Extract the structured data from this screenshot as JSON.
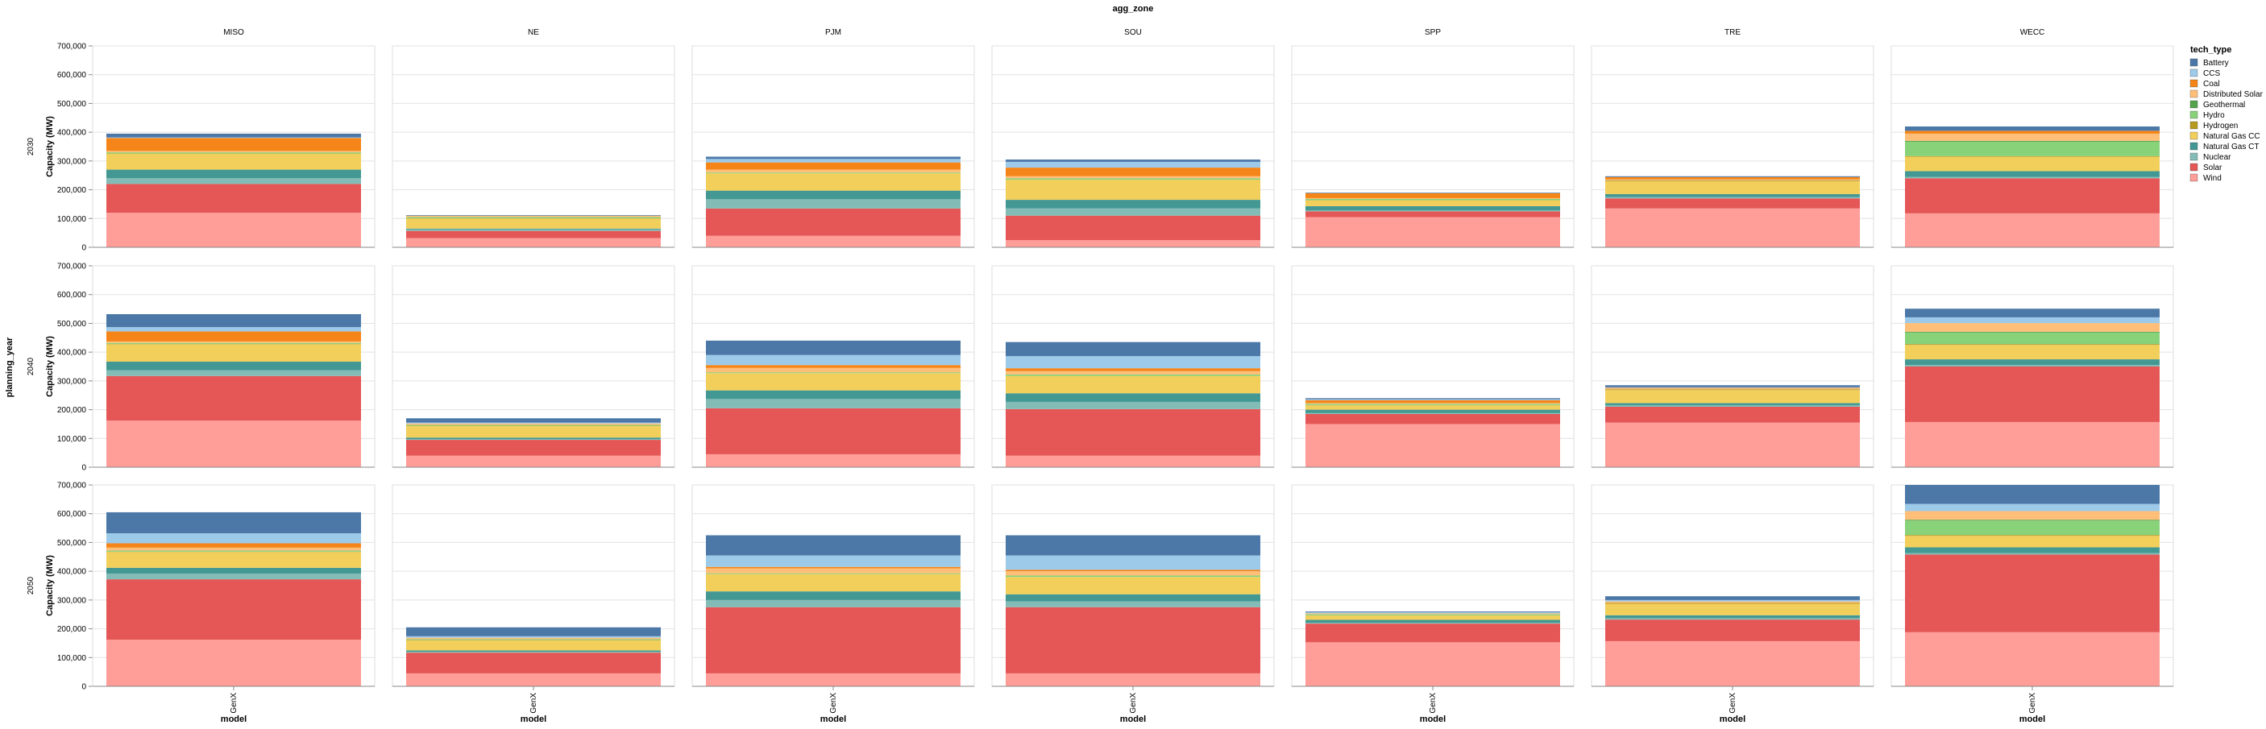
{
  "chart_data": {
    "type": "bar",
    "stacked": true,
    "title": "agg_zone",
    "row_field": "planning_year",
    "xlabel": "model",
    "ylabel": "Capacity (MW)",
    "ylim": [
      0,
      700000
    ],
    "yticks": [
      0,
      100000,
      200000,
      300000,
      400000,
      500000,
      600000,
      700000
    ],
    "ytick_labels": [
      "0",
      "100,000",
      "200,000",
      "300,000",
      "400,000",
      "500,000",
      "600,000",
      "700,000"
    ],
    "grid": true,
    "legend_title": "tech_type",
    "legend_position": "right",
    "columns": [
      "MISO",
      "NE",
      "PJM",
      "SOU",
      "SPP",
      "TRE",
      "WECC"
    ],
    "rows": [
      "2030",
      "2040",
      "2050"
    ],
    "categories": [
      "GenX"
    ],
    "tech_types": [
      "Battery",
      "CCS",
      "Coal",
      "Distributed Solar",
      "Geothermal",
      "Hydro",
      "Hydrogen",
      "Natural Gas CC",
      "Natural Gas CT",
      "Nuclear",
      "Solar",
      "Wind"
    ],
    "colors": {
      "Battery": "#4c78a8",
      "CCS": "#9ecae9",
      "Coal": "#f58518",
      "Distributed Solar": "#ffbf79",
      "Geothermal": "#54a24b",
      "Hydro": "#88d27a",
      "Hydrogen": "#b79a20",
      "Natural Gas CC": "#f2cf5b",
      "Natural Gas CT": "#439894",
      "Nuclear": "#83bcb6",
      "Solar": "#e45756",
      "Wind": "#ff9d98"
    },
    "stack_order": [
      "Wind",
      "Solar",
      "Nuclear",
      "Natural Gas CT",
      "Natural Gas CC",
      "Hydrogen",
      "Hydro",
      "Geothermal",
      "Distributed Solar",
      "Coal",
      "CCS",
      "Battery"
    ],
    "values": {
      "2030": {
        "MISO": {
          "Wind": 120000,
          "Solar": 100000,
          "Nuclear": 20000,
          "Natural Gas CT": 30000,
          "Natural Gas CC": 55000,
          "Hydrogen": 1000,
          "Hydro": 4000,
          "Geothermal": 0,
          "Distributed Solar": 5000,
          "Coal": 45000,
          "CCS": 2000,
          "Battery": 13000
        },
        "NE": {
          "Wind": 32000,
          "Solar": 25000,
          "Nuclear": 5000,
          "Natural Gas CT": 3000,
          "Natural Gas CC": 35000,
          "Hydrogen": 1000,
          "Hydro": 4000,
          "Geothermal": 0,
          "Distributed Solar": 5000,
          "Coal": 0,
          "CCS": 0,
          "Battery": 2000
        },
        "PJM": {
          "Wind": 40000,
          "Solar": 95000,
          "Nuclear": 32000,
          "Natural Gas CT": 30000,
          "Natural Gas CC": 60000,
          "Hydrogen": 0,
          "Hydro": 3000,
          "Geothermal": 0,
          "Distributed Solar": 10000,
          "Coal": 25000,
          "CCS": 12000,
          "Battery": 8000
        },
        "SOU": {
          "Wind": 25000,
          "Solar": 85000,
          "Nuclear": 25000,
          "Natural Gas CT": 30000,
          "Natural Gas CC": 70000,
          "Hydrogen": 0,
          "Hydro": 5000,
          "Geothermal": 0,
          "Distributed Solar": 7000,
          "Coal": 30000,
          "CCS": 20000,
          "Battery": 8000
        },
        "SPP": {
          "Wind": 105000,
          "Solar": 20000,
          "Nuclear": 3000,
          "Natural Gas CT": 15000,
          "Natural Gas CC": 20000,
          "Hydrogen": 1000,
          "Hydro": 4000,
          "Geothermal": 0,
          "Distributed Solar": 3000,
          "Coal": 17000,
          "CCS": 0,
          "Battery": 2000
        },
        "TRE": {
          "Wind": 135000,
          "Solar": 35000,
          "Nuclear": 5000,
          "Natural Gas CT": 10000,
          "Natural Gas CC": 45000,
          "Hydrogen": 3000,
          "Hydro": 0,
          "Geothermal": 0,
          "Distributed Solar": 3000,
          "Coal": 8000,
          "CCS": 0,
          "Battery": 3000
        },
        "WECC": {
          "Wind": 118000,
          "Solar": 122000,
          "Nuclear": 5000,
          "Natural Gas CT": 20000,
          "Natural Gas CC": 50000,
          "Hydrogen": 2000,
          "Hydro": 50000,
          "Geothermal": 3000,
          "Distributed Solar": 25000,
          "Coal": 10000,
          "CCS": 0,
          "Battery": 15000
        }
      },
      "2040": {
        "MISO": {
          "Wind": 162000,
          "Solar": 155000,
          "Nuclear": 20000,
          "Natural Gas CT": 30000,
          "Natural Gas CC": 60000,
          "Hydrogen": 1000,
          "Hydro": 4000,
          "Geothermal": 0,
          "Distributed Solar": 5000,
          "Coal": 35000,
          "CCS": 15000,
          "Battery": 45000
        },
        "NE": {
          "Wind": 40000,
          "Solar": 55000,
          "Nuclear": 3000,
          "Natural Gas CT": 5000,
          "Natural Gas CC": 40000,
          "Hydrogen": 1000,
          "Hydro": 3000,
          "Geothermal": 0,
          "Distributed Solar": 5000,
          "Coal": 0,
          "CCS": 3000,
          "Battery": 15000
        },
        "PJM": {
          "Wind": 45000,
          "Solar": 160000,
          "Nuclear": 32000,
          "Natural Gas CT": 30000,
          "Natural Gas CC": 60000,
          "Hydrogen": 0,
          "Hydro": 3000,
          "Geothermal": 0,
          "Distributed Solar": 15000,
          "Coal": 10000,
          "CCS": 35000,
          "Battery": 50000
        },
        "SOU": {
          "Wind": 40000,
          "Solar": 162000,
          "Nuclear": 25000,
          "Natural Gas CT": 30000,
          "Natural Gas CC": 60000,
          "Hydrogen": 0,
          "Hydro": 5000,
          "Geothermal": 0,
          "Distributed Solar": 12000,
          "Coal": 10000,
          "CCS": 42000,
          "Battery": 49000
        },
        "SPP": {
          "Wind": 150000,
          "Solar": 35000,
          "Nuclear": 3000,
          "Natural Gas CT": 12000,
          "Natural Gas CC": 15000,
          "Hydrogen": 1000,
          "Hydro": 4000,
          "Geothermal": 0,
          "Distributed Solar": 3000,
          "Coal": 10000,
          "CCS": 3000,
          "Battery": 4000
        },
        "TRE": {
          "Wind": 155000,
          "Solar": 55000,
          "Nuclear": 5000,
          "Natural Gas CT": 8000,
          "Natural Gas CC": 45000,
          "Hydrogen": 3000,
          "Hydro": 0,
          "Geothermal": 0,
          "Distributed Solar": 3000,
          "Coal": 2000,
          "CCS": 2000,
          "Battery": 7000
        },
        "WECC": {
          "Wind": 157000,
          "Solar": 193000,
          "Nuclear": 5000,
          "Natural Gas CT": 20000,
          "Natural Gas CC": 50000,
          "Hydrogen": 3000,
          "Hydro": 40000,
          "Geothermal": 3000,
          "Distributed Solar": 30000,
          "Coal": 0,
          "CCS": 20000,
          "Battery": 30000
        }
      },
      "2050": {
        "MISO": {
          "Wind": 162000,
          "Solar": 210000,
          "Nuclear": 20000,
          "Natural Gas CT": 20000,
          "Natural Gas CC": 55000,
          "Hydrogen": 1000,
          "Hydro": 4000,
          "Geothermal": 0,
          "Distributed Solar": 10000,
          "Coal": 15000,
          "CCS": 35000,
          "Battery": 73000
        },
        "NE": {
          "Wind": 45000,
          "Solar": 72000,
          "Nuclear": 3000,
          "Natural Gas CT": 5000,
          "Natural Gas CC": 35000,
          "Hydrogen": 1000,
          "Hydro": 3000,
          "Geothermal": 0,
          "Distributed Solar": 5000,
          "Coal": 0,
          "CCS": 5000,
          "Battery": 31000
        },
        "PJM": {
          "Wind": 45000,
          "Solar": 230000,
          "Nuclear": 25000,
          "Natural Gas CT": 30000,
          "Natural Gas CC": 60000,
          "Hydrogen": 0,
          "Hydro": 3000,
          "Geothermal": 0,
          "Distributed Solar": 17000,
          "Coal": 5000,
          "CCS": 40000,
          "Battery": 70000
        },
        "SOU": {
          "Wind": 45000,
          "Solar": 230000,
          "Nuclear": 20000,
          "Natural Gas CT": 25000,
          "Natural Gas CC": 60000,
          "Hydrogen": 0,
          "Hydro": 5000,
          "Geothermal": 0,
          "Distributed Solar": 15000,
          "Coal": 5000,
          "CCS": 50000,
          "Battery": 70000
        },
        "SPP": {
          "Wind": 153000,
          "Solar": 65000,
          "Nuclear": 3000,
          "Natural Gas CT": 10000,
          "Natural Gas CC": 15000,
          "Hydrogen": 1000,
          "Hydro": 4000,
          "Geothermal": 0,
          "Distributed Solar": 3000,
          "Coal": 0,
          "CCS": 3000,
          "Battery": 3000
        },
        "TRE": {
          "Wind": 157000,
          "Solar": 75000,
          "Nuclear": 5000,
          "Natural Gas CT": 10000,
          "Natural Gas CC": 40000,
          "Hydrogen": 3000,
          "Hydro": 0,
          "Geothermal": 0,
          "Distributed Solar": 5000,
          "Coal": 0,
          "CCS": 5000,
          "Battery": 13000
        },
        "WECC": {
          "Wind": 188000,
          "Solar": 270000,
          "Nuclear": 5000,
          "Natural Gas CT": 20000,
          "Natural Gas CC": 40000,
          "Hydrogen": 3000,
          "Hydro": 50000,
          "Geothermal": 3000,
          "Distributed Solar": 30000,
          "Coal": 0,
          "CCS": 25000,
          "Battery": 66000
        }
      }
    }
  }
}
